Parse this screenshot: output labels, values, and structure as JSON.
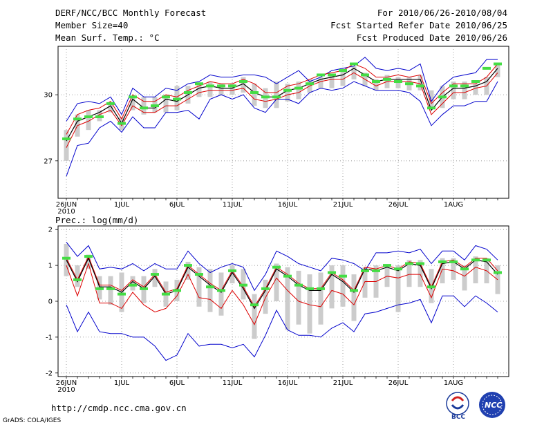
{
  "header": {
    "title": "DERF/NCC/BCC Monthly Forecast",
    "member_size": "Member Size=40",
    "variable_top": "Mean Surf. Temp.: °C",
    "period": "For 2010/06/26-2010/08/04",
    "started": "Fcst Started Refer Date 2010/06/25",
    "produced": "Fcst Produced Date 2010/06/26"
  },
  "footer": {
    "url": "http://cmdp.ncc.cma.gov.cn",
    "grads": "GrADS: COLA/IGES",
    "logo_bcc": "BCC",
    "logo_ncc": "NCC"
  },
  "colors": {
    "envelope": "#0000cc",
    "percentile": "#dd0000",
    "mean": "#000000",
    "median": "#44dd44",
    "box": "#cccccc"
  },
  "chart_data": [
    {
      "type": "line",
      "title": "Mean Surf. Temp.: °C",
      "x_ticks": [
        "26JUN",
        "1JUL",
        "6JUL",
        "11JUL",
        "16JUL",
        "21JUL",
        "26JUL",
        "1AUG"
      ],
      "x_year": "2010",
      "y_ticks": [
        "27",
        "30"
      ],
      "y_tick_values": [
        27,
        30
      ],
      "ylim": [
        25.3,
        32.2
      ],
      "series": [
        {
          "name": "max",
          "values": [
            28.8,
            29.6,
            29.7,
            29.6,
            29.9,
            29.1,
            30.3,
            29.9,
            29.9,
            30.3,
            30.2,
            30.5,
            30.6,
            30.9,
            30.8,
            30.8,
            30.9,
            30.9,
            30.8,
            30.5,
            30.8,
            31.1,
            30.6,
            30.8,
            31.1,
            31.2,
            31.3,
            31.7,
            31.2,
            31.1,
            31.2,
            31.1,
            31.4,
            29.7,
            30.4,
            30.8,
            30.9,
            31.0,
            31.6,
            31.6
          ]
        },
        {
          "name": "p90",
          "values": [
            28.2,
            29.1,
            29.3,
            29.4,
            29.7,
            28.9,
            30.0,
            29.7,
            29.7,
            30.0,
            29.9,
            30.2,
            30.4,
            30.6,
            30.5,
            30.5,
            30.7,
            30.5,
            30.1,
            30.1,
            30.4,
            30.5,
            30.7,
            30.9,
            31.0,
            31.1,
            31.4,
            31.2,
            30.8,
            30.8,
            30.9,
            30.8,
            30.9,
            29.6,
            30.1,
            30.5,
            30.5,
            30.5,
            30.8,
            31.4
          ]
        },
        {
          "name": "mean",
          "values": [
            27.9,
            28.8,
            29.0,
            29.2,
            29.5,
            28.7,
            29.8,
            29.4,
            29.4,
            29.8,
            29.7,
            30.0,
            30.3,
            30.4,
            30.3,
            30.3,
            30.5,
            30.1,
            29.9,
            29.9,
            30.2,
            30.3,
            30.5,
            30.7,
            30.8,
            30.9,
            31.2,
            30.9,
            30.6,
            30.7,
            30.7,
            30.7,
            30.7,
            29.3,
            29.9,
            30.3,
            30.3,
            30.4,
            30.6,
            31.2
          ]
        },
        {
          "name": "p10",
          "values": [
            27.6,
            28.6,
            28.8,
            29.1,
            29.3,
            28.6,
            29.5,
            29.2,
            29.2,
            29.5,
            29.5,
            29.8,
            30.1,
            30.2,
            30.2,
            30.2,
            30.3,
            29.8,
            29.7,
            29.8,
            30.0,
            30.1,
            30.4,
            30.6,
            30.7,
            30.7,
            31.0,
            30.7,
            30.4,
            30.6,
            30.6,
            30.6,
            30.5,
            29.1,
            29.6,
            30.1,
            30.1,
            30.3,
            30.4,
            31.0
          ]
        },
        {
          "name": "min",
          "values": [
            26.3,
            27.7,
            27.8,
            28.5,
            28.8,
            28.3,
            29.0,
            28.5,
            28.5,
            29.2,
            29.2,
            29.3,
            28.9,
            29.8,
            30.0,
            29.8,
            30.0,
            29.4,
            29.2,
            29.8,
            29.8,
            29.6,
            30.1,
            30.3,
            30.2,
            30.3,
            30.6,
            30.4,
            30.2,
            30.2,
            30.2,
            30.1,
            29.7,
            28.6,
            29.1,
            29.5,
            29.5,
            29.7,
            29.7,
            30.6
          ]
        },
        {
          "name": "median",
          "values": [
            28.0,
            28.9,
            29.0,
            29.0,
            29.6,
            28.7,
            29.9,
            29.4,
            29.5,
            29.9,
            29.8,
            30.1,
            30.5,
            30.4,
            30.4,
            30.4,
            30.6,
            30.1,
            29.9,
            29.9,
            30.2,
            30.3,
            30.5,
            30.9,
            30.9,
            31.1,
            31.4,
            30.9,
            30.6,
            30.7,
            30.6,
            30.5,
            30.4,
            29.4,
            29.9,
            30.4,
            30.4,
            30.6,
            31.2,
            31.4
          ]
        },
        {
          "name": "box_hi",
          "values": [
            28.4,
            29.1,
            29.3,
            29.3,
            29.6,
            29.0,
            29.9,
            29.9,
            29.9,
            30.0,
            30.4,
            30.4,
            30.5,
            30.6,
            30.5,
            30.5,
            30.8,
            30.5,
            30.3,
            30.6,
            30.5,
            30.6,
            30.7,
            30.8,
            30.9,
            31.1,
            31.3,
            31.0,
            30.7,
            30.9,
            30.8,
            30.8,
            30.9,
            30.2,
            30.4,
            30.6,
            30.6,
            30.5,
            30.8,
            31.4
          ]
        },
        {
          "name": "box_lo",
          "values": [
            27.0,
            28.1,
            28.4,
            28.8,
            29.2,
            28.4,
            29.3,
            29.1,
            29.2,
            29.2,
            29.3,
            29.6,
            29.9,
            29.9,
            30.0,
            30.0,
            30.1,
            29.5,
            29.4,
            29.4,
            29.7,
            29.8,
            30.1,
            30.3,
            30.3,
            30.4,
            30.7,
            30.4,
            30.2,
            30.3,
            30.3,
            30.2,
            30.2,
            29.4,
            29.4,
            29.8,
            29.8,
            30.0,
            30.0,
            30.8
          ]
        }
      ]
    },
    {
      "type": "line",
      "title": "Prec.: log(mm/d)",
      "x_ticks": [
        "26JUN",
        "1JUL",
        "6JUL",
        "11JUL",
        "16JUL",
        "21JUL",
        "26JUL",
        "1AUG"
      ],
      "x_year": "2010",
      "y_ticks": [
        "-2",
        "-1",
        "0",
        "1",
        "2"
      ],
      "y_tick_values": [
        -2,
        -1,
        0,
        1,
        2
      ],
      "ylim": [
        -2.1,
        2.1
      ],
      "series": [
        {
          "name": "max",
          "values": [
            1.65,
            1.25,
            1.55,
            0.9,
            0.95,
            0.9,
            1.05,
            0.85,
            1.05,
            0.9,
            0.9,
            1.4,
            1.05,
            0.8,
            0.95,
            1.05,
            0.95,
            0.3,
            0.75,
            1.4,
            1.25,
            1.05,
            0.95,
            0.85,
            1.2,
            1.15,
            1.05,
            0.85,
            1.35,
            1.35,
            1.4,
            1.35,
            1.45,
            1.05,
            1.4,
            1.4,
            1.15,
            1.55,
            1.45,
            1.15
          ]
        },
        {
          "name": "p90",
          "values": [
            1.2,
            0.6,
            1.25,
            0.45,
            0.45,
            0.3,
            0.6,
            0.4,
            0.75,
            0.25,
            0.35,
            1.0,
            0.75,
            0.5,
            0.3,
            0.85,
            0.4,
            -0.15,
            0.35,
            0.95,
            0.75,
            0.5,
            0.35,
            0.35,
            0.8,
            0.6,
            0.3,
            0.95,
            0.9,
            1.0,
            0.9,
            1.1,
            1.05,
            0.4,
            1.1,
            1.15,
            0.95,
            1.2,
            1.2,
            0.85
          ]
        },
        {
          "name": "mean",
          "values": [
            1.15,
            0.55,
            1.2,
            0.4,
            0.4,
            0.25,
            0.55,
            0.35,
            0.7,
            0.2,
            0.3,
            0.95,
            0.7,
            0.45,
            0.25,
            0.8,
            0.35,
            -0.2,
            0.3,
            0.9,
            0.7,
            0.45,
            0.3,
            0.3,
            0.75,
            0.55,
            0.25,
            0.9,
            0.85,
            0.95,
            0.85,
            1.05,
            1.0,
            0.35,
            1.05,
            1.1,
            0.9,
            1.15,
            1.1,
            0.75
          ]
        },
        {
          "name": "p10",
          "values": [
            1.0,
            0.15,
            1.05,
            -0.05,
            -0.05,
            -0.2,
            0.25,
            -0.1,
            -0.3,
            -0.2,
            0.15,
            0.75,
            0.1,
            0.05,
            -0.2,
            0.3,
            -0.1,
            -0.65,
            0.1,
            0.65,
            0.3,
            0.0,
            -0.1,
            -0.15,
            0.3,
            0.2,
            -0.1,
            0.55,
            0.55,
            0.7,
            0.65,
            0.75,
            0.75,
            0.1,
            0.9,
            0.85,
            0.7,
            0.95,
            0.85,
            0.6
          ]
        },
        {
          "name": "min",
          "values": [
            -0.1,
            -0.85,
            -0.3,
            -0.85,
            -0.9,
            -0.9,
            -1.0,
            -1.0,
            -1.25,
            -1.65,
            -1.5,
            -0.9,
            -1.25,
            -1.2,
            -1.2,
            -1.3,
            -1.2,
            -1.55,
            -0.95,
            -0.25,
            -0.8,
            -0.95,
            -0.95,
            -1.0,
            -0.75,
            -0.6,
            -0.85,
            -0.35,
            -0.3,
            -0.2,
            -0.1,
            -0.05,
            0.05,
            -0.6,
            0.15,
            0.15,
            -0.15,
            0.15,
            -0.05,
            -0.3
          ]
        },
        {
          "name": "median",
          "values": [
            1.2,
            0.6,
            1.25,
            0.35,
            0.35,
            0.2,
            0.45,
            0.35,
            0.75,
            0.2,
            0.3,
            1.0,
            0.75,
            0.4,
            0.3,
            0.85,
            0.45,
            -0.1,
            0.35,
            0.95,
            0.7,
            0.45,
            0.35,
            0.35,
            0.8,
            0.7,
            0.3,
            0.85,
            0.85,
            1.0,
            0.9,
            1.05,
            1.05,
            0.4,
            1.1,
            1.1,
            0.9,
            1.15,
            1.15,
            0.8
          ]
        },
        {
          "name": "box_hi",
          "values": [
            1.6,
            1.0,
            1.3,
            0.7,
            0.7,
            0.8,
            0.7,
            0.7,
            0.9,
            0.55,
            0.6,
            1.1,
            0.95,
            0.9,
            0.8,
            1.0,
            0.9,
            0.2,
            0.6,
            1.05,
            0.95,
            0.85,
            0.75,
            0.8,
            1.0,
            1.0,
            0.75,
            0.95,
            1.0,
            1.0,
            1.0,
            1.15,
            1.15,
            0.9,
            1.2,
            1.2,
            1.0,
            1.25,
            1.2,
            1.0
          ]
        },
        {
          "name": "box_lo",
          "values": [
            0.7,
            0.4,
            0.9,
            0.05,
            -0.1,
            -0.3,
            0.3,
            -0.05,
            0.4,
            -0.15,
            0.0,
            0.6,
            -0.15,
            -0.3,
            -0.4,
            0.5,
            0.05,
            -1.05,
            -0.35,
            0.0,
            -0.8,
            -0.65,
            -0.9,
            -0.65,
            -0.2,
            -0.15,
            -0.55,
            0.1,
            0.1,
            0.4,
            -0.3,
            0.4,
            0.4,
            -0.05,
            0.5,
            0.6,
            0.3,
            0.5,
            0.5,
            0.2
          ]
        }
      ]
    }
  ]
}
